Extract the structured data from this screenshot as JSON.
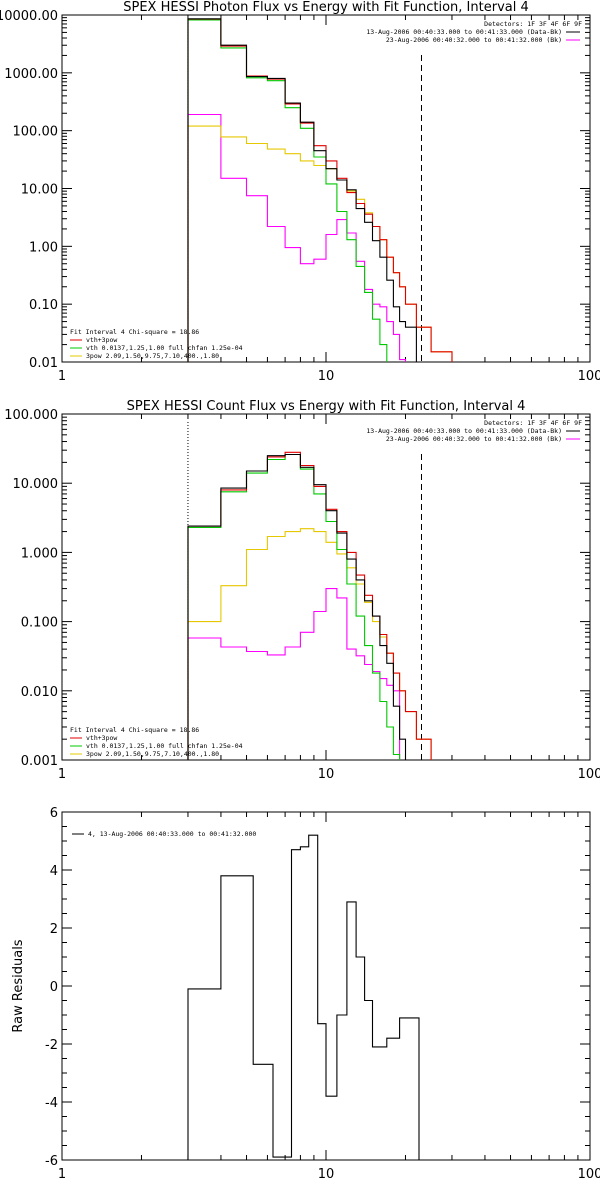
{
  "colors": {
    "axes": "#000000",
    "total": "#000000",
    "vth_plus_3pow": "#e00000",
    "vth": "#00c800",
    "pow": "#e6c800",
    "bk": "#ff00ff"
  },
  "chart_data": [
    {
      "type": "line",
      "step": true,
      "title": "SPEX HESSI Photon Flux vs Energy with Fit Function, Interval 4",
      "xscale": "log",
      "yscale": "log",
      "xlim": [
        1,
        100
      ],
      "ylim": [
        0.01,
        10000
      ],
      "xticks": [
        "1",
        "10",
        "100"
      ],
      "yticks": [
        "0.01",
        "0.10",
        "1.00",
        "10.00",
        "100.00",
        "1000.00",
        "10000.00"
      ],
      "ytick_values": [
        0.01,
        0.1,
        1,
        10,
        100,
        1000,
        10000
      ],
      "detectors": "Detectors: 1F 3F 4F 6F 9F",
      "legend_top": [
        {
          "text": "13-Aug-2006 00:40:33.000 to 00:41:33.000 (Data-Bk)",
          "color": "#000000"
        },
        {
          "text": "23-Aug-2006 00:40:32.000 to 00:41:32.000 (Bk)",
          "color": "#ff00ff"
        }
      ],
      "legend_bottom_title": "Fit Interval  4    Chi-square = 18.86",
      "legend_bottom": [
        {
          "text": "vth+3pow",
          "color": "#e00000"
        },
        {
          "text": "vth 0.0137,1.25,1.00  full chfan 1.25e-04",
          "color": "#00c800"
        },
        {
          "text": "3pow 2.09,1.50,9.75,7.10,400.,1.80",
          "color": "#e6c800"
        }
      ],
      "edges": [
        3,
        4,
        5,
        6,
        7,
        8,
        9,
        10,
        11,
        12,
        13,
        14,
        15,
        16,
        17,
        18,
        19,
        20,
        22,
        25,
        30
      ],
      "vline_dotted": 3,
      "vline_dashed": 23,
      "series": [
        {
          "key": "bk",
          "values": [
            190,
            15,
            7.5,
            2.2,
            0.95,
            0.5,
            0.6,
            1.6,
            2.9,
            1.7,
            0.55,
            0.18,
            0.1,
            0.09,
            0.05,
            0.03,
            0.011
          ]
        },
        {
          "key": "pow",
          "values": [
            120,
            78,
            60,
            48,
            40,
            30,
            25,
            22,
            14,
            9,
            6.5,
            3.8,
            2.2,
            1.3,
            0.65,
            0.35,
            0.2,
            0.1,
            0.04,
            0.015
          ]
        },
        {
          "key": "vth",
          "values": [
            8200,
            2700,
            820,
            730,
            250,
            110,
            35,
            12,
            4,
            1.3,
            0.45,
            0.16,
            0.055,
            0.02,
            0.009,
            0.003
          ]
        },
        {
          "key": "vth_plus_3pow",
          "values": [
            8500,
            2900,
            880,
            780,
            290,
            135,
            55,
            30,
            15,
            8.5,
            5.5,
            3.6,
            2.2,
            1.3,
            0.65,
            0.35,
            0.2,
            0.1,
            0.04,
            0.015
          ]
        },
        {
          "key": "total",
          "values": [
            8600,
            3000,
            860,
            800,
            300,
            140,
            45,
            22,
            14,
            9.5,
            4.5,
            2.6,
            1.25,
            0.65,
            0.26,
            0.09,
            0.05,
            0.04
          ]
        }
      ]
    },
    {
      "type": "line",
      "step": true,
      "title": "SPEX HESSI Count Flux vs Energy with Fit Function, Interval 4",
      "xscale": "log",
      "yscale": "log",
      "xlim": [
        1,
        100
      ],
      "ylim": [
        0.001,
        100
      ],
      "xticks": [
        "1",
        "10",
        "100"
      ],
      "yticks": [
        "0.001",
        "0.010",
        "0.100",
        "1.000",
        "10.000",
        "100.000"
      ],
      "ytick_values": [
        0.001,
        0.01,
        0.1,
        1,
        10,
        100
      ],
      "detectors": "Detectors: 1F 3F 4F 6F 9F",
      "legend_top": [
        {
          "text": "13-Aug-2006 00:40:33.000 to 00:41:33.000 (Data-Bk)",
          "color": "#000000"
        },
        {
          "text": "23-Aug-2006 00:40:32.000 to 00:41:32.000 (Bk)",
          "color": "#ff00ff"
        }
      ],
      "legend_bottom_title": "Fit Interval  4    Chi-square = 18.86",
      "legend_bottom": [
        {
          "text": "vth+3pow",
          "color": "#e00000"
        },
        {
          "text": "vth 0.0137,1.25,1.00  full chfan 1.25e-04",
          "color": "#00c800"
        },
        {
          "text": "3pow 2.09,1.50,9.75,7.10,400.,1.80",
          "color": "#e6c800"
        }
      ],
      "edges": [
        3,
        4,
        5,
        6,
        7,
        8,
        9,
        10,
        11,
        12,
        13,
        14,
        15,
        16,
        17,
        18,
        19,
        20,
        22,
        25,
        30
      ],
      "vline_dotted": 3,
      "vline_dashed": 23,
      "series": [
        {
          "key": "bk",
          "values": [
            0.058,
            0.043,
            0.037,
            0.033,
            0.043,
            0.07,
            0.14,
            0.3,
            0.22,
            0.04,
            0.032,
            0.024,
            0.019,
            0.015,
            0.012,
            0.01,
            0.0008
          ]
        },
        {
          "key": "pow",
          "values": [
            0.1,
            0.33,
            1.1,
            1.7,
            2.0,
            2.2,
            2.0,
            1.4,
            0.95,
            0.6,
            0.35,
            0.19,
            0.1,
            0.06,
            0.035,
            0.018,
            0.01,
            0.005,
            0.002,
            0.0009
          ]
        },
        {
          "key": "vth",
          "values": [
            2.3,
            7.5,
            14,
            22,
            26,
            16,
            7,
            2.8,
            1.1,
            0.35,
            0.12,
            0.045,
            0.018,
            0.007,
            0.003,
            0.0012
          ]
        },
        {
          "key": "vth_plus_3pow",
          "values": [
            2.4,
            8.0,
            15,
            24,
            28,
            18,
            9,
            4.2,
            2.0,
            1.0,
            0.47,
            0.24,
            0.12,
            0.065,
            0.035,
            0.018,
            0.01,
            0.005,
            0.002,
            0.0009
          ]
        },
        {
          "key": "total",
          "values": [
            2.4,
            8.5,
            15,
            25,
            26,
            17,
            9.5,
            4.0,
            1.9,
            0.8,
            0.4,
            0.2,
            0.12,
            0.045,
            0.025,
            0.006,
            0.002
          ]
        }
      ]
    },
    {
      "type": "line",
      "step": true,
      "title": "",
      "xscale": "log",
      "yscale": "linear",
      "xlim": [
        1,
        100
      ],
      "ylim": [
        -6,
        6
      ],
      "ylabel": "Raw Residuals",
      "xticks": [
        "1",
        "10",
        "100"
      ],
      "yticks": [
        "-6",
        "-4",
        "-2",
        "0",
        "2",
        "4",
        "6"
      ],
      "ytick_values": [
        -6,
        -4,
        -2,
        0,
        2,
        4,
        6
      ],
      "legend_top_left": [
        {
          "text": "4, 13-Aug-2006 00:40:33.000 to 00:41:32.000",
          "color": "#000000"
        }
      ],
      "edges": [
        3,
        3.5,
        4,
        4.6,
        5.3,
        6.3,
        7.4,
        8.0,
        8.6,
        9.3,
        10,
        11,
        12,
        13,
        14,
        15,
        16,
        17,
        18,
        19,
        20,
        22.5
      ],
      "series": [
        {
          "key": "total",
          "values": [
            -0.1,
            -0.1,
            3.8,
            3.8,
            -2.7,
            -5.9,
            4.7,
            4.8,
            5.2,
            -1.3,
            -3.8,
            -1.0,
            2.9,
            1.0,
            -0.5,
            -2.1,
            -2.1,
            -1.8,
            -1.8,
            -1.1,
            -1.1
          ]
        }
      ]
    }
  ]
}
